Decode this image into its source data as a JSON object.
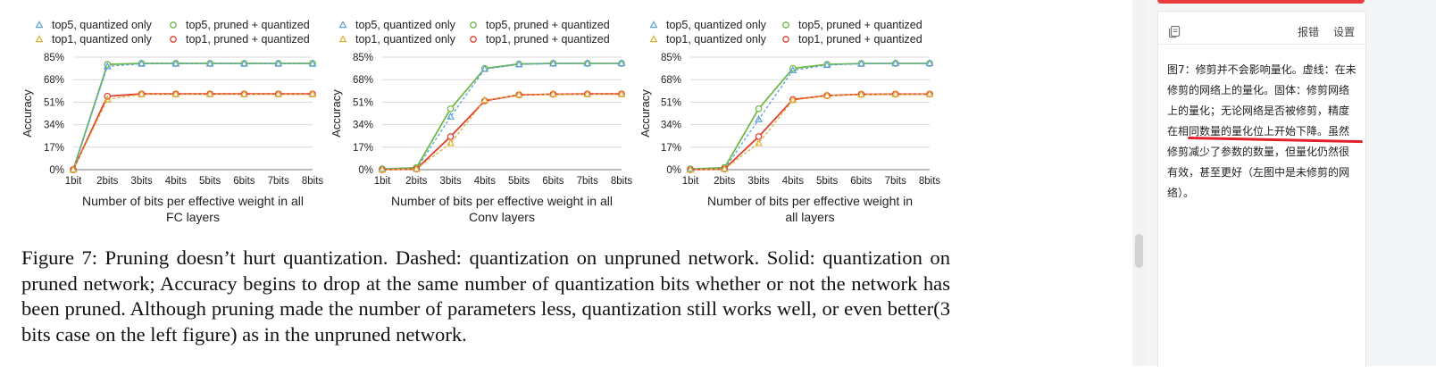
{
  "legend": {
    "top5_quantized": "top5, quantized only",
    "top5_pruned": "top5, pruned + quantized",
    "top1_quantized": "top1, quantized only",
    "top1_pruned": "top1, pruned + quantized"
  },
  "colors": {
    "top5": "#5aa0d8",
    "top5_pruned": "#70b848",
    "top1": "#e0b030",
    "top1_pruned": "#e04030",
    "axis": "#555555"
  },
  "chart_data": [
    {
      "type": "line",
      "ylabel": "Accuracy",
      "xlabel_line1": "Number of bits per effective weight in all",
      "xlabel_line2": "FC layers",
      "categories": [
        "1bit",
        "2bits",
        "3bits",
        "4bits",
        "5bits",
        "6bits",
        "7bits",
        "8bits"
      ],
      "yticks": [
        "0%",
        "17%",
        "34%",
        "51%",
        "68%",
        "85%"
      ],
      "ylim": [
        0,
        85
      ],
      "series": [
        {
          "name": "top5, quantized only",
          "values": [
            0,
            78,
            80,
            80,
            80,
            80,
            80,
            80
          ]
        },
        {
          "name": "top5, pruned + quantized",
          "values": [
            0,
            79.5,
            80.3,
            80.3,
            80.3,
            80.3,
            80.3,
            80.3
          ]
        },
        {
          "name": "top1, quantized only",
          "values": [
            0,
            53,
            57,
            57,
            57,
            57,
            57,
            57
          ]
        },
        {
          "name": "top1, pruned + quantized",
          "values": [
            0,
            55.5,
            57.2,
            57.2,
            57.2,
            57.2,
            57.2,
            57.2
          ]
        }
      ]
    },
    {
      "type": "line",
      "ylabel": "Accuracy",
      "xlabel_line1": "Number of bits per effective weight in all",
      "xlabel_line2": "Conv layers",
      "categories": [
        "1bit",
        "2bits",
        "3bits",
        "4bits",
        "5bits",
        "6bits",
        "7bits",
        "8bits"
      ],
      "yticks": [
        "0%",
        "17%",
        "34%",
        "51%",
        "68%",
        "85%"
      ],
      "ylim": [
        0,
        85
      ],
      "series": [
        {
          "name": "top5, quantized only",
          "values": [
            0.5,
            0.5,
            40,
            76,
            79.5,
            80.2,
            80.3,
            80.3
          ]
        },
        {
          "name": "top5, pruned + quantized",
          "values": [
            0.5,
            1.5,
            46,
            76.5,
            79.8,
            80.3,
            80.3,
            80.3
          ]
        },
        {
          "name": "top1, quantized only",
          "values": [
            0,
            0.5,
            20,
            52.5,
            56.5,
            57,
            57,
            57
          ]
        },
        {
          "name": "top1, pruned + quantized",
          "values": [
            0,
            0.5,
            25,
            52,
            56.5,
            57,
            57.2,
            57.2
          ]
        }
      ]
    },
    {
      "type": "line",
      "ylabel": "Accuracy",
      "xlabel_line1": "Number of bits per effective weight in",
      "xlabel_line2": "all layers",
      "categories": [
        "1bit",
        "2bits",
        "3bits",
        "4bits",
        "5bits",
        "6bits",
        "7bits",
        "8bits"
      ],
      "yticks": [
        "0%",
        "17%",
        "34%",
        "51%",
        "68%",
        "85%"
      ],
      "ylim": [
        0,
        85
      ],
      "series": [
        {
          "name": "top5, quantized only",
          "values": [
            0.5,
            0.5,
            38,
            75,
            79,
            80,
            80.3,
            80.3
          ]
        },
        {
          "name": "top5, pruned + quantized",
          "values": [
            0.5,
            1.5,
            46,
            76.5,
            79.5,
            80.2,
            80.3,
            80.3
          ]
        },
        {
          "name": "top1, quantized only",
          "values": [
            0,
            0.5,
            20,
            52.5,
            56,
            56.8,
            57,
            57
          ]
        },
        {
          "name": "top1, pruned + quantized",
          "values": [
            0,
            0.5,
            25,
            53,
            56,
            56.9,
            57.1,
            57.1
          ]
        }
      ]
    }
  ],
  "caption": "Figure 7: Pruning doesn’t hurt quantization. Dashed: quantization on unpruned network. Solid: quantization on pruned network; Accuracy begins to drop at the same number of quantization bits whether or not the network has been pruned. Although pruning made the number of parameters less, quantization still works well, or even better(3 bits case on the left figure) as in the unpruned network.",
  "panel": {
    "copy_icon": "copy-icon",
    "feedback_label": "报错",
    "settings_label": "设置",
    "translation": "图7：修剪并不会影响量化。虚线：在未修剪的网络上的量化。固体：修剪网络上的量化；无论网络是否被修剪，精度在相同数量的量化位上开始下降。虽然修剪减少了参数的数量，但量化仍然很有效，甚至更好（左图中是未修剪的网络）。"
  }
}
